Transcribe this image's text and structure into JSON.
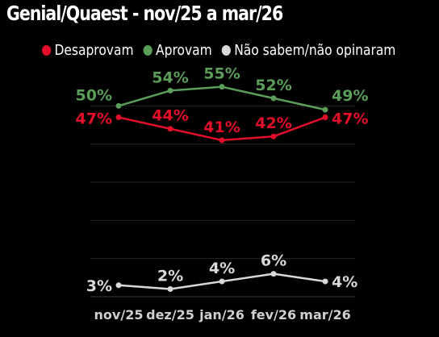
{
  "chart_data": {
    "type": "line",
    "title": "Genial/Quaest - nov/25 a mar/26",
    "xlabel": "",
    "ylabel": "",
    "categories": [
      "nov/25",
      "dez/25",
      "jan/26",
      "fev/26",
      "mar/26"
    ],
    "ylim": [
      0,
      60
    ],
    "grid": true,
    "legend_position": "top-left",
    "series": [
      {
        "name": "Desaprovam",
        "color": "#e30f2a",
        "values": [
          47,
          44,
          41,
          42,
          47
        ],
        "labels": [
          "47%",
          "44%",
          "41%",
          "42%",
          "47%"
        ]
      },
      {
        "name": "Aprovam",
        "color": "#5a9e5a",
        "values": [
          50,
          54,
          55,
          52,
          49
        ],
        "labels": [
          "50%",
          "54%",
          "55%",
          "52%",
          "49%"
        ]
      },
      {
        "name": "Não sabem/não opinaram",
        "color": "#d9d9d9",
        "values": [
          3,
          2,
          4,
          6,
          4
        ],
        "labels": [
          "3%",
          "2%",
          "4%",
          "6%",
          "4%"
        ]
      }
    ]
  }
}
